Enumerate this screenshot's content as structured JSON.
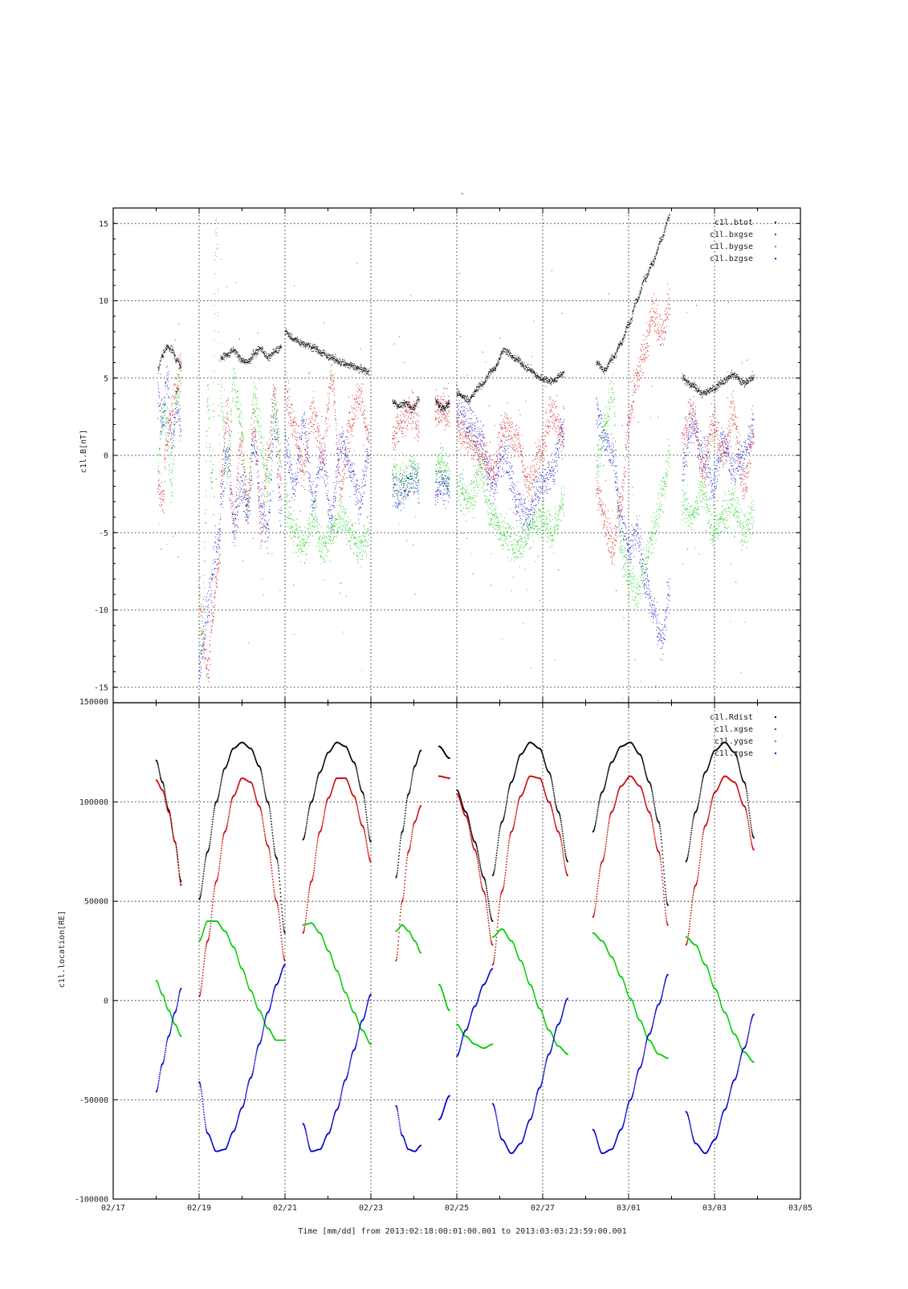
{
  "chart_data": [
    {
      "type": "scatter",
      "title": "-",
      "ylabel": "c1l.B[nT]",
      "ylim": [
        -16,
        16
      ],
      "yticks": [
        -15,
        -10,
        -5,
        0,
        5,
        10,
        15
      ],
      "xlim": [
        "2013-02-17",
        "2013-03-05"
      ],
      "xticks": [
        "02/17",
        "02/19",
        "02/21",
        "02/23",
        "02/25",
        "02/27",
        "03/01",
        "03/03",
        "03/05"
      ],
      "grid": true,
      "legend_position": "top-right",
      "series": [
        {
          "name": "c1l.btot",
          "color": "#000000"
        },
        {
          "name": "c1l.bxgse",
          "color": "#cc0000"
        },
        {
          "name": "c1l.bygse",
          "color": "#00cc00"
        },
        {
          "name": "c1l.bzgse",
          "color": "#0000cc"
        }
      ],
      "segments": [
        {
          "start": "2013-02-18T01:00",
          "end": "2013-02-18T14:00",
          "btot": [
            5.5,
            6.5,
            7.0,
            6.8,
            6.2,
            5.8
          ],
          "bxgse": [
            -2,
            -3,
            1,
            3,
            4,
            6
          ],
          "bygse": [
            -1,
            3,
            2,
            -2,
            4,
            5
          ],
          "bzgse": [
            4,
            2,
            5,
            1,
            3,
            2
          ]
        },
        {
          "start": "2013-02-19T00:00",
          "end": "2013-02-19T12:00",
          "btot": [],
          "bxgse": [
            -9,
            -12,
            -14,
            -11,
            -8,
            -6
          ],
          "bygse": [
            -13,
            -10,
            4,
            -2,
            15,
            -3
          ],
          "bzgse": [
            -14,
            -12,
            -10,
            -8,
            -6,
            -5
          ]
        },
        {
          "start": "2013-02-19T12:00",
          "end": "2013-02-20T22:00",
          "btot": [
            6.3,
            6.5,
            6.8,
            6.2,
            6.0,
            6.6,
            6.9,
            6.3,
            6.7,
            7.0
          ],
          "bxgse": [
            -2,
            3,
            -4,
            1,
            -3,
            2,
            -5,
            0,
            4,
            -2
          ],
          "bygse": [
            4,
            -1,
            5,
            2,
            -3,
            4,
            1,
            -2,
            3,
            0
          ],
          "bzgse": [
            -3,
            0,
            -5,
            -2,
            -4,
            1,
            -3,
            -5,
            2,
            -4
          ]
        },
        {
          "start": "2013-02-21T00:00",
          "end": "2013-02-22T23:00",
          "btot": [
            8.0,
            7.5,
            7.2,
            7.0,
            6.6,
            6.3,
            6.0,
            5.8,
            5.6,
            5.4
          ],
          "bxgse": [
            4,
            2,
            -1,
            3,
            0,
            5,
            -2,
            2,
            4,
            1
          ],
          "bygse": [
            -3,
            -5,
            -6,
            -4,
            -6,
            -5,
            -4,
            -5,
            -6,
            -5
          ],
          "bzgse": [
            1,
            -2,
            2,
            -3,
            0,
            -4,
            1,
            -1,
            -3,
            0
          ]
        },
        {
          "start": "2013-02-23T12:00",
          "end": "2013-02-24T03:00",
          "btot": [
            3.5,
            3.2,
            3.4,
            3.0,
            3.6
          ],
          "bxgse": [
            1,
            2,
            2.5,
            3,
            2
          ],
          "bygse": [
            -1,
            -2,
            -1.5,
            -1,
            -1.2
          ],
          "bzgse": [
            -2,
            -2.5,
            -2,
            -1.5,
            -2
          ]
        },
        {
          "start": "2013-02-24T12:00",
          "end": "2013-02-24T20:00",
          "btot": [
            3.5,
            3.0,
            3.4
          ],
          "bxgse": [
            2.5,
            3,
            2.8
          ],
          "bygse": [
            -1,
            -0.5,
            -1.5
          ],
          "bzgse": [
            -2,
            -1.8,
            -2.2
          ]
        },
        {
          "start": "2013-02-25T00:00",
          "end": "2013-02-27T12:00",
          "btot": [
            4.0,
            3.6,
            4.5,
            5.5,
            6.8,
            6.2,
            5.6,
            5.0,
            4.8,
            5.3
          ],
          "bxgse": [
            2,
            1,
            0,
            -1,
            2,
            1,
            -2,
            0,
            3,
            1
          ],
          "bygse": [
            -2,
            -3,
            -1,
            -4,
            -5,
            -6,
            -5,
            -4,
            -5,
            -3
          ],
          "bzgse": [
            3,
            2,
            1,
            -2,
            0,
            -3,
            -4,
            -2,
            -1,
            2
          ]
        },
        {
          "start": "2013-02-28T06:00",
          "end": "2013-03-01T23:00",
          "btot": [
            6.0,
            5.5,
            6.3,
            7.2,
            8.5,
            10.0,
            11.5,
            12.5,
            14.0,
            15.5
          ],
          "bxgse": [
            -2,
            -4,
            -6,
            -3,
            2,
            5,
            7,
            9,
            8,
            10
          ],
          "bygse": [
            -1,
            2,
            4,
            -6,
            -8,
            -9,
            -7,
            -5,
            -3,
            0
          ],
          "bzgse": [
            3,
            1,
            0,
            -4,
            -6,
            -5,
            -8,
            -10,
            -12,
            -9
          ]
        },
        {
          "start": "2013-03-02T06:00",
          "end": "2013-03-03T22:00",
          "btot": [
            5.0,
            4.5,
            4.0,
            4.3,
            4.8,
            5.2,
            4.7,
            5.0
          ],
          "bxgse": [
            1,
            3,
            -1,
            2,
            0,
            3,
            -2,
            1
          ],
          "bygse": [
            -3,
            -4,
            -2,
            -5,
            -4,
            -3,
            -5,
            -4
          ],
          "bzgse": [
            -1,
            2,
            0,
            -2,
            1,
            -1,
            0,
            2
          ]
        }
      ]
    },
    {
      "type": "scatter",
      "ylabel": "c1l.location[RE]",
      "xlabel": "Time [mm/dd]  from 2013:02:18:00:01:00.001  to  2013:03:03:23:59:00.001",
      "ylim": [
        -100000,
        150000
      ],
      "yticks": [
        -100000,
        -50000,
        0,
        50000,
        100000,
        150000
      ],
      "xlim": [
        "2013-02-17",
        "2013-03-05"
      ],
      "xticks": [
        "02/17",
        "02/19",
        "02/21",
        "02/23",
        "02/25",
        "02/27",
        "03/01",
        "03/03",
        "03/05"
      ],
      "grid": true,
      "legend_position": "top-right",
      "series": [
        {
          "name": "c1l.Rdist",
          "color": "#000000"
        },
        {
          "name": "c1l.xgse",
          "color": "#cc0000"
        },
        {
          "name": "c1l.ygse",
          "color": "#00cc00"
        },
        {
          "name": "c1l.zgse",
          "color": "#0000cc"
        }
      ],
      "segments": [
        {
          "start": "2013-02-18T00:00",
          "end": "2013-02-18T14:00",
          "Rdist": [
            121000,
            110000,
            96000,
            80000,
            60000
          ],
          "xgse": [
            111000,
            106000,
            95000,
            80000,
            58000
          ],
          "ygse": [
            10000,
            3000,
            -5000,
            -12000,
            -18000
          ],
          "zgse": [
            -46000,
            -32000,
            -18000,
            -6000,
            6000
          ]
        },
        {
          "start": "2013-02-19T00:00",
          "end": "2013-02-21T00:00",
          "Rdist": [
            51000,
            75000,
            100000,
            117000,
            127000,
            130000,
            127000,
            118000,
            100000,
            72000,
            34000
          ],
          "xgse": [
            2000,
            30000,
            60000,
            85000,
            103000,
            112000,
            110000,
            98000,
            78000,
            50000,
            20000
          ],
          "ygse": [
            30000,
            40000,
            40000,
            35000,
            27000,
            16000,
            5000,
            -5000,
            -14000,
            -20000,
            -20000
          ],
          "zgse": [
            -41000,
            -67000,
            -76000,
            -75000,
            -66000,
            -54000,
            -39000,
            -22000,
            -6000,
            8000,
            18000
          ]
        },
        {
          "start": "2013-02-21T10:00",
          "end": "2013-02-23T00:00",
          "Rdist": [
            81000,
            100000,
            115000,
            125000,
            130000,
            128000,
            120000,
            105000,
            80000
          ],
          "xgse": [
            34000,
            60000,
            85000,
            102000,
            112000,
            112000,
            103000,
            88000,
            70000
          ],
          "ygse": [
            38000,
            39000,
            34000,
            25000,
            15000,
            4000,
            -6000,
            -15000,
            -22000
          ],
          "zgse": [
            -62000,
            -76000,
            -75000,
            -67000,
            -55000,
            -40000,
            -25000,
            -10000,
            3000
          ]
        },
        {
          "start": "2013-02-23T14:00",
          "end": "2013-02-24T04:00",
          "Rdist": [
            62000,
            85000,
            104000,
            118000,
            126000
          ],
          "xgse": [
            20000,
            50000,
            75000,
            90000,
            98000
          ],
          "ygse": [
            35000,
            38000,
            35000,
            30000,
            24000
          ],
          "zgse": [
            -53000,
            -68000,
            -75000,
            -76000,
            -73000
          ]
        },
        {
          "start": "2013-02-24T14:00",
          "end": "2013-02-24T20:00",
          "Rdist": [
            128000,
            122000
          ],
          "xgse": [
            113000,
            112000
          ],
          "ygse": [
            8000,
            -5000
          ],
          "zgse": [
            -60000,
            -48000
          ]
        },
        {
          "start": "2013-02-25T00:00",
          "end": "2013-02-25T20:00",
          "Rdist": [
            106000,
            95000,
            80000,
            62000,
            40000
          ],
          "xgse": [
            104000,
            93000,
            76000,
            55000,
            28000
          ],
          "ygse": [
            -12000,
            -18000,
            -22000,
            -24000,
            -22000
          ],
          "zgse": [
            -28000,
            -15000,
            -3000,
            8000,
            16000
          ]
        },
        {
          "start": "2013-02-25T20:00",
          "end": "2013-02-27T14:00",
          "Rdist": [
            63000,
            90000,
            110000,
            124000,
            130000,
            127000,
            115000,
            95000,
            70000
          ],
          "xgse": [
            18000,
            55000,
            85000,
            103000,
            113000,
            112000,
            100000,
            85000,
            63000
          ],
          "ygse": [
            32000,
            36000,
            30000,
            20000,
            8000,
            -4000,
            -15000,
            -23000,
            -27000
          ],
          "zgse": [
            -52000,
            -70000,
            -77000,
            -72000,
            -60000,
            -44000,
            -27000,
            -12000,
            1000
          ]
        },
        {
          "start": "2013-02-28T04:00",
          "end": "2013-03-01T22:00",
          "Rdist": [
            85000,
            105000,
            120000,
            128000,
            130000,
            124000,
            110000,
            90000,
            48000
          ],
          "xgse": [
            42000,
            70000,
            95000,
            108000,
            113000,
            108000,
            95000,
            75000,
            38000
          ],
          "ygse": [
            34000,
            30000,
            22000,
            12000,
            1000,
            -10000,
            -20000,
            -27000,
            -29000
          ],
          "zgse": [
            -65000,
            -77000,
            -75000,
            -65000,
            -50000,
            -34000,
            -17000,
            -2000,
            13000
          ]
        },
        {
          "start": "2013-03-02T08:00",
          "end": "2013-03-03T22:00",
          "Rdist": [
            70000,
            95000,
            115000,
            126000,
            130000,
            125000,
            110000,
            82000
          ],
          "xgse": [
            28000,
            58000,
            88000,
            105000,
            113000,
            110000,
            98000,
            76000
          ],
          "ygse": [
            32000,
            28000,
            18000,
            6000,
            -6000,
            -17000,
            -26000,
            -31000
          ],
          "zgse": [
            -56000,
            -72000,
            -77000,
            -70000,
            -55000,
            -40000,
            -24000,
            -7000
          ]
        }
      ]
    }
  ]
}
